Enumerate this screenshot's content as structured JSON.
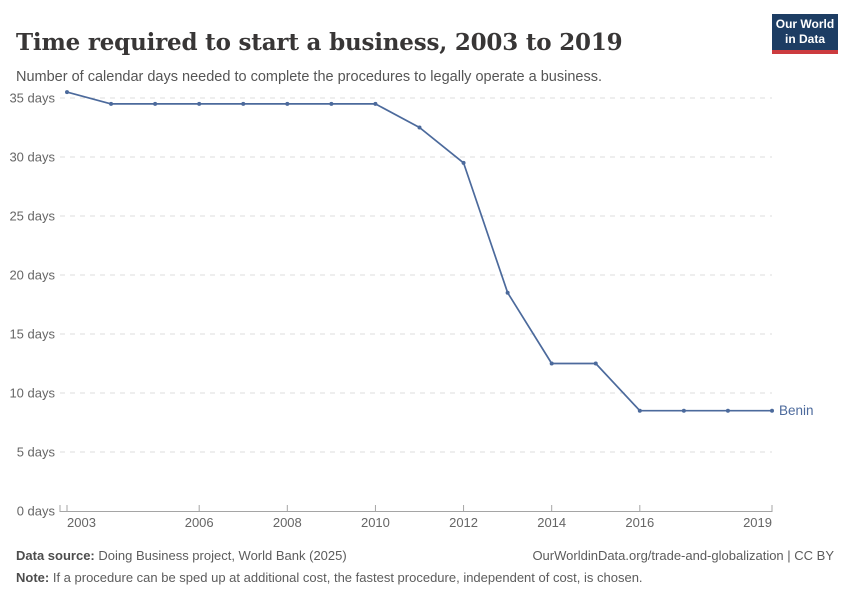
{
  "header": {
    "title": "Time required to start a business, 2003 to 2019",
    "subtitle": "Number of calendar days needed to complete the procedures to legally operate a business.",
    "logo_line1": "Our World",
    "logo_line2": "in Data"
  },
  "chart_data": {
    "type": "line",
    "title": "Time required to start a business, 2003 to 2019",
    "xlabel": "",
    "ylabel": "Number of calendar days",
    "x": [
      2003,
      2004,
      2005,
      2006,
      2007,
      2008,
      2009,
      2010,
      2011,
      2012,
      2013,
      2014,
      2015,
      2016,
      2017,
      2018,
      2019
    ],
    "series": [
      {
        "name": "Benin",
        "values": [
          35.5,
          34.5,
          34.5,
          34.5,
          34.5,
          34.5,
          34.5,
          34.5,
          32.5,
          29.5,
          18.5,
          12.5,
          12.5,
          8.5,
          8.5,
          8.5,
          8.5
        ]
      }
    ],
    "x_ticks": [
      2003,
      2006,
      2008,
      2010,
      2012,
      2014,
      2016,
      2019
    ],
    "y_ticks": [
      0,
      5,
      10,
      15,
      20,
      25,
      30,
      35
    ],
    "y_tick_suffix": " days",
    "xlim": [
      2003,
      2019
    ],
    "ylim": [
      0,
      37.5
    ],
    "grid": true,
    "legend_position": "end-of-line",
    "line_color": "#4c6a9c",
    "gridline_color": "#dcdcdc",
    "axis_color": "#a5a5a5",
    "tick_label_color": "#666666"
  },
  "footer": {
    "source_label": "Data source:",
    "source_text": " Doing Business project, World Bank (2025)",
    "link_text": "OurWorldinData.org/trade-and-globalization | CC BY",
    "note_label": "Note:",
    "note_text": " If a procedure can be sped up at additional cost, the fastest procedure, independent of cost, is chosen."
  }
}
